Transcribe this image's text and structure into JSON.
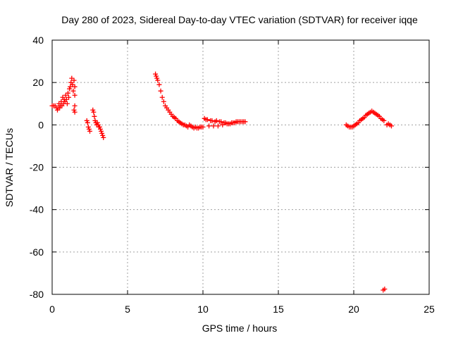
{
  "chart_data": {
    "type": "scatter",
    "title": "Day 280 of 2023, Sidereal Day-to-day VTEC variation (SDTVAR) for receiver iqqe",
    "xlabel": "GPS time / hours",
    "ylabel": "SDTVAR / TECUs",
    "xlim": [
      0,
      25
    ],
    "ylim": [
      -80,
      40
    ],
    "xticks": [
      0,
      5,
      10,
      15,
      20,
      25
    ],
    "yticks": [
      -80,
      -60,
      -40,
      -20,
      0,
      20,
      40
    ],
    "xtick_labels": [
      "0",
      "5",
      "10",
      "15",
      "20",
      "25"
    ],
    "ytick_labels": [
      "-80",
      "-60",
      "-40",
      "-20",
      "0",
      "20",
      "40"
    ],
    "grid": true,
    "marker": "plus",
    "colors": {
      "series": "#ff0000",
      "grid": "#a0a0a0",
      "axes": "#000000"
    },
    "series": [
      {
        "name": "SDTVAR",
        "points": [
          [
            0.0,
            9
          ],
          [
            0.1,
            9
          ],
          [
            0.2,
            9
          ],
          [
            0.3,
            8
          ],
          [
            0.35,
            7
          ],
          [
            0.4,
            8
          ],
          [
            0.45,
            10
          ],
          [
            0.5,
            8
          ],
          [
            0.55,
            9
          ],
          [
            0.6,
            11
          ],
          [
            0.65,
            9
          ],
          [
            0.7,
            13
          ],
          [
            0.75,
            10
          ],
          [
            0.8,
            12
          ],
          [
            0.85,
            11
          ],
          [
            0.9,
            14
          ],
          [
            0.95,
            12
          ],
          [
            1.0,
            10
          ],
          [
            1.05,
            15
          ],
          [
            1.1,
            13
          ],
          [
            1.15,
            17
          ],
          [
            1.2,
            18
          ],
          [
            1.25,
            20
          ],
          [
            1.3,
            22
          ],
          [
            1.35,
            19
          ],
          [
            1.4,
            16
          ],
          [
            1.45,
            21
          ],
          [
            1.5,
            18
          ],
          [
            1.5,
            14
          ],
          [
            1.5,
            9
          ],
          [
            1.5,
            6
          ],
          [
            1.45,
            7
          ],
          [
            2.3,
            2
          ],
          [
            2.35,
            1
          ],
          [
            2.4,
            -1
          ],
          [
            2.45,
            -2
          ],
          [
            2.5,
            -3
          ],
          [
            2.7,
            7
          ],
          [
            2.75,
            6
          ],
          [
            2.8,
            4
          ],
          [
            2.85,
            2
          ],
          [
            2.9,
            1
          ],
          [
            2.95,
            0
          ],
          [
            3.0,
            1
          ],
          [
            3.05,
            0
          ],
          [
            3.1,
            -1
          ],
          [
            3.15,
            -1
          ],
          [
            3.2,
            -2
          ],
          [
            3.25,
            -3
          ],
          [
            3.3,
            -4
          ],
          [
            3.35,
            -5
          ],
          [
            3.4,
            -6
          ],
          [
            6.85,
            24
          ],
          [
            6.9,
            23
          ],
          [
            6.95,
            22
          ],
          [
            7.0,
            21
          ],
          [
            7.1,
            19
          ],
          [
            7.2,
            16
          ],
          [
            7.3,
            13
          ],
          [
            7.4,
            11
          ],
          [
            7.5,
            9
          ],
          [
            7.6,
            8
          ],
          [
            7.7,
            7
          ],
          [
            7.8,
            6
          ],
          [
            7.9,
            5
          ],
          [
            8.0,
            4
          ],
          [
            8.1,
            3.5
          ],
          [
            8.2,
            3
          ],
          [
            8.3,
            2
          ],
          [
            8.4,
            1.5
          ],
          [
            8.5,
            1
          ],
          [
            8.6,
            0.5
          ],
          [
            8.7,
            0
          ],
          [
            8.8,
            0
          ],
          [
            8.9,
            -0.5
          ],
          [
            9.0,
            -1
          ],
          [
            9.1,
            0
          ],
          [
            9.2,
            -0.5
          ],
          [
            9.3,
            -1
          ],
          [
            9.4,
            -1.5
          ],
          [
            9.5,
            -1
          ],
          [
            9.6,
            -1.5
          ],
          [
            9.7,
            -1.5
          ],
          [
            9.8,
            -1
          ],
          [
            9.9,
            -1
          ],
          [
            10.0,
            -1
          ],
          [
            10.1,
            3
          ],
          [
            10.2,
            2.5
          ],
          [
            10.3,
            2.5
          ],
          [
            10.4,
            -0.5
          ],
          [
            10.5,
            2
          ],
          [
            10.6,
            2
          ],
          [
            10.7,
            -0.5
          ],
          [
            10.8,
            1.5
          ],
          [
            10.9,
            2
          ],
          [
            11.0,
            -0.5
          ],
          [
            11.1,
            1.5
          ],
          [
            11.2,
            1.5
          ],
          [
            11.3,
            0
          ],
          [
            11.4,
            1
          ],
          [
            11.5,
            1
          ],
          [
            11.6,
            0.5
          ],
          [
            11.7,
            0.5
          ],
          [
            11.8,
            0.5
          ],
          [
            11.9,
            1
          ],
          [
            12.0,
            1
          ],
          [
            12.1,
            1
          ],
          [
            12.2,
            1.5
          ],
          [
            12.3,
            1.5
          ],
          [
            12.4,
            1.5
          ],
          [
            12.5,
            1.5
          ],
          [
            12.6,
            1.5
          ],
          [
            12.7,
            1.5
          ],
          [
            12.8,
            1.5
          ],
          [
            19.5,
            0
          ],
          [
            19.6,
            -0.5
          ],
          [
            19.7,
            -1
          ],
          [
            19.8,
            -1
          ],
          [
            19.9,
            -1
          ],
          [
            20.0,
            -0.5
          ],
          [
            20.1,
            0
          ],
          [
            20.2,
            0.5
          ],
          [
            20.3,
            1
          ],
          [
            20.4,
            2
          ],
          [
            20.5,
            2.5
          ],
          [
            20.6,
            3
          ],
          [
            20.7,
            3.5
          ],
          [
            20.8,
            4.5
          ],
          [
            20.9,
            5
          ],
          [
            21.0,
            5.5
          ],
          [
            21.1,
            6
          ],
          [
            21.2,
            6.5
          ],
          [
            21.3,
            6
          ],
          [
            21.4,
            5.5
          ],
          [
            21.5,
            5
          ],
          [
            21.6,
            4.5
          ],
          [
            21.7,
            4
          ],
          [
            21.8,
            3
          ],
          [
            21.9,
            2.5
          ],
          [
            22.0,
            2
          ],
          [
            22.2,
            0
          ],
          [
            22.3,
            0.5
          ],
          [
            22.4,
            0
          ],
          [
            22.5,
            -0.5
          ],
          [
            21.95,
            -78
          ],
          [
            22.05,
            -77.5
          ]
        ]
      }
    ]
  }
}
